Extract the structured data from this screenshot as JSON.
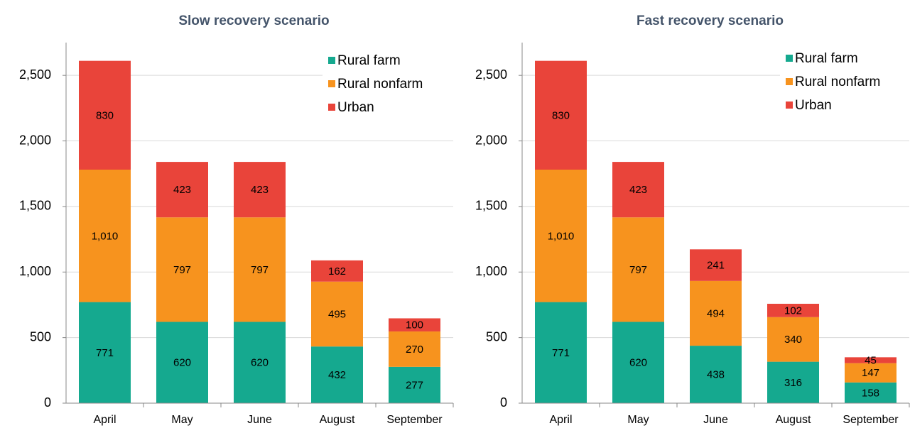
{
  "chart_data": [
    {
      "type": "stacked_bar",
      "title": "Slow recovery scenario",
      "categories": [
        "April",
        "May",
        "June",
        "August",
        "September"
      ],
      "series": [
        {
          "name": "Rural farm",
          "color": "#15a98f",
          "values": [
            771,
            620,
            620,
            432,
            277
          ],
          "value_labels": [
            "771",
            "620",
            "620",
            "432",
            "277"
          ]
        },
        {
          "name": "Rural nonfarm",
          "color": "#f7931e",
          "values": [
            1010,
            797,
            797,
            495,
            270
          ],
          "value_labels": [
            "1,010",
            "797",
            "797",
            "495",
            "270"
          ]
        },
        {
          "name": "Urban",
          "color": "#e9443a",
          "values": [
            830,
            423,
            423,
            162,
            100
          ],
          "value_labels": [
            "830",
            "423",
            "423",
            "162",
            "100"
          ]
        }
      ],
      "ylim": [
        0,
        2750
      ],
      "yticks": [
        0,
        500,
        {
          "value": 1000,
          "label": "1,000"
        },
        {
          "value": 1500,
          "label": "1,500"
        },
        {
          "value": 2000,
          "label": "2,000"
        },
        {
          "value": 2500,
          "label": "2,500"
        }
      ],
      "grid": true,
      "legend": "top-right"
    },
    {
      "type": "stacked_bar",
      "title": "Fast recovery scenario",
      "categories": [
        "April",
        "May",
        "June",
        "August",
        "September"
      ],
      "series": [
        {
          "name": "Rural farm",
          "color": "#15a98f",
          "values": [
            771,
            620,
            438,
            316,
            158
          ],
          "value_labels": [
            "771",
            "620",
            "438",
            "316",
            "158"
          ]
        },
        {
          "name": "Rural nonfarm",
          "color": "#f7931e",
          "values": [
            1010,
            797,
            494,
            340,
            147
          ],
          "value_labels": [
            "1,010",
            "797",
            "494",
            "340",
            "147"
          ]
        },
        {
          "name": "Urban",
          "color": "#e9443a",
          "values": [
            830,
            423,
            241,
            102,
            45
          ],
          "value_labels": [
            "830",
            "423",
            "241",
            "102",
            "45"
          ]
        }
      ],
      "ylim": [
        0,
        2750
      ],
      "yticks": [
        0,
        500,
        {
          "value": 1000,
          "label": "1,000"
        },
        {
          "value": 1500,
          "label": "1,500"
        },
        {
          "value": 2000,
          "label": "2,000"
        },
        {
          "value": 2500,
          "label": "2,500"
        }
      ],
      "grid": true,
      "legend": "top-right"
    }
  ]
}
